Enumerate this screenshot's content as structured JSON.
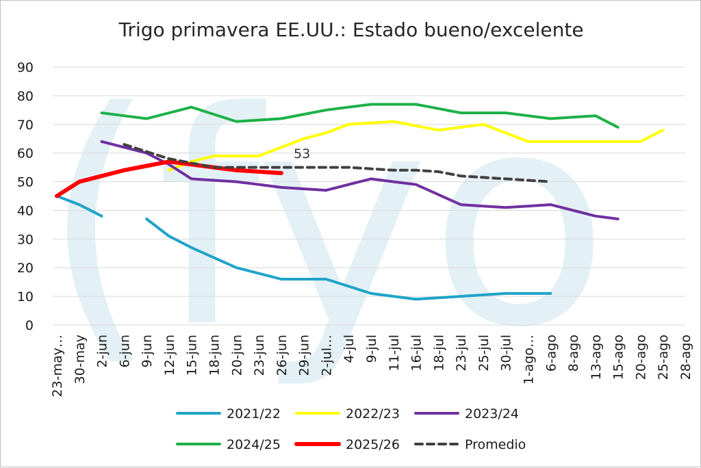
{
  "watermark": {
    "text": "(fyo"
  },
  "chart_data": {
    "type": "line",
    "title": "Trigo primavera EE.UU.: Estado bueno/excelente",
    "xlabel": "",
    "ylabel": "",
    "ylim": [
      0,
      90
    ],
    "yticks": [
      "0",
      "10",
      "20",
      "30",
      "40",
      "50",
      "60",
      "70",
      "80",
      "90"
    ],
    "grid": true,
    "legend_position": "bottom",
    "categories": [
      "23-may…",
      "30-may",
      "2-jun",
      "6-jun",
      "9-jun",
      "12-jun",
      "15-jun",
      "18-jun",
      "20-jun",
      "23-jun",
      "26-jun",
      "29-jun",
      "2-jul…",
      "4-jul",
      "9-jul",
      "11-jul",
      "16-jul",
      "18-jul",
      "23-jul",
      "25-jul",
      "30-jul",
      "1-ago…",
      "6-ago",
      "8-ago",
      "13-ago",
      "15-ago",
      "20-ago",
      "25-ago",
      "28-ago"
    ],
    "series": [
      {
        "name": "2021/22",
        "color": "#1fa3c9",
        "width": 4,
        "dash": "",
        "values": [
          45,
          42,
          38,
          null,
          37,
          31,
          27,
          23.5,
          20,
          18,
          16,
          16,
          16,
          13.5,
          11,
          10,
          9,
          9.5,
          10,
          10.5,
          11,
          11,
          11,
          null,
          null,
          null,
          null,
          null,
          null
        ]
      },
      {
        "name": "2022/23",
        "color": "#ffff00",
        "width": 4,
        "dash": "",
        "values": [
          null,
          null,
          null,
          null,
          null,
          54,
          57,
          59,
          59,
          59,
          62,
          65,
          67,
          70,
          70.5,
          71,
          69.5,
          68,
          69,
          70,
          67,
          64,
          64,
          64,
          64,
          64,
          64,
          68,
          null
        ]
      },
      {
        "name": "2023/24",
        "color": "#7030a0",
        "width": 4,
        "dash": "",
        "values": [
          null,
          null,
          64,
          62,
          60,
          56,
          51,
          50.5,
          50,
          49,
          48,
          47.5,
          47,
          49,
          51,
          50,
          49,
          45.5,
          42,
          41.5,
          41,
          41.5,
          42,
          40,
          38,
          37,
          null,
          null,
          null
        ]
      },
      {
        "name": "2024/25",
        "color": "#1db147",
        "width": 4,
        "dash": "",
        "values": [
          null,
          null,
          74,
          73,
          72,
          74,
          76,
          73.5,
          71,
          71.5,
          72,
          73.5,
          75,
          76,
          77,
          77,
          77,
          75.5,
          74,
          74,
          74,
          73,
          72,
          72.5,
          73,
          69,
          null,
          null,
          null
        ]
      },
      {
        "name": "2025/26",
        "color": "#ff0000",
        "width": 6,
        "dash": "",
        "values": [
          45,
          50,
          52,
          54,
          55.5,
          57,
          56,
          55,
          54,
          53.5,
          53,
          null,
          null,
          null,
          null,
          null,
          null,
          null,
          null,
          null,
          null,
          null,
          null,
          null,
          null,
          null,
          null,
          null,
          null
        ]
      },
      {
        "name": "Promedio",
        "color": "#404040",
        "width": 4,
        "dash": "10,7",
        "values": [
          null,
          null,
          null,
          63,
          60.5,
          58,
          56.5,
          55,
          55,
          55,
          55,
          55,
          55,
          55,
          54.5,
          54,
          54,
          53.5,
          52,
          51.5,
          51,
          50.5,
          50,
          null,
          null,
          null,
          null,
          null,
          null
        ]
      }
    ],
    "annotations": [
      {
        "text": "53"
      }
    ]
  }
}
